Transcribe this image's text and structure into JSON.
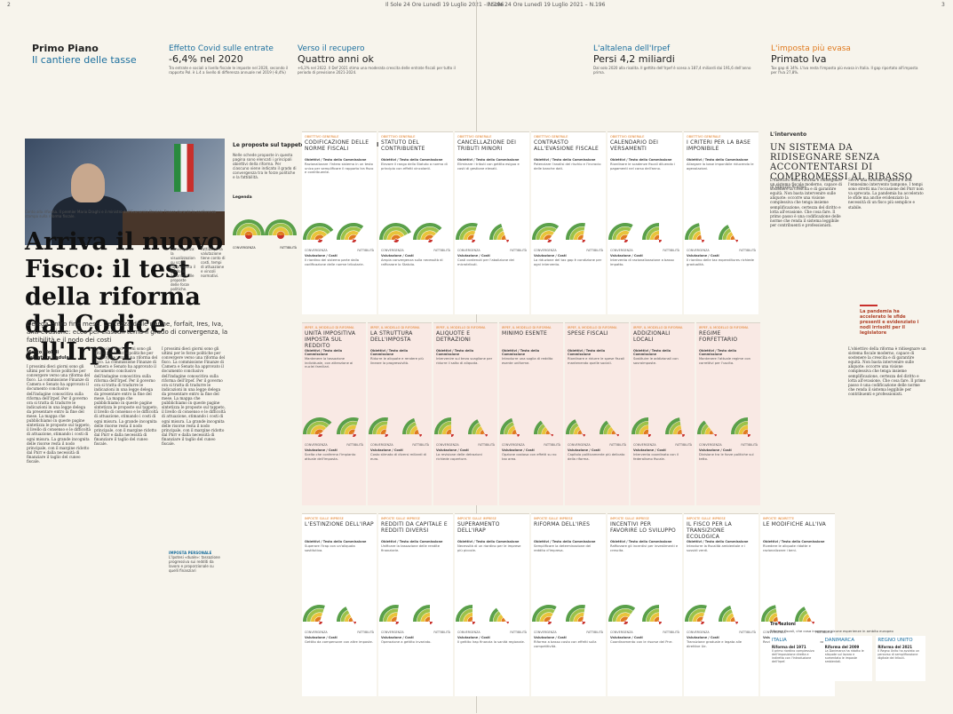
{
  "pages": {
    "left": "2",
    "right": "3"
  },
  "header": {
    "left": "Il Sole 24 Ore Lunedì 19 Luglio 2021 – N.196",
    "right": "Il Sole 24 Ore Lunedì 19 Luglio 2021 – N.196"
  },
  "section": {
    "main": "Primo Piano",
    "sub": "Il cantiere delle tasse"
  },
  "stats": [
    {
      "kicker": "Effetto Covid sulle entrate",
      "value": "-6,4% nel 2020",
      "text": "Tra entrate e sociali a livello fiscale le imposte nel 2020, secondo il rapporto Pol. è L.4 a livello di differenza annuale nel 2019 (-8,4%)"
    },
    {
      "kicker": "Verso il recupero",
      "value": "Quattro anni ok",
      "text": "+6,3% nel 2022. Il Def 2021 stima una moderata crescita delle entrate fiscali per tutto il periodo di previsione 2021-2024."
    },
    {
      "kicker": "L'altalena dell'Irpef",
      "value": "Persi 4,2 miliardi",
      "text": "Dal solo 2020 alla risalita. Il gettito dell'Irpef è sceso a 187,4 miliardi dai 191,6 dell'anno prima."
    },
    {
      "kicker": "L'imposta più evasa",
      "value": "Primato Iva",
      "text": "Tax gap di 34%. L'Iva resta l'imposta più evasa in Italia. Il gap riportato all'imposta per l'Iva 27,8%."
    }
  ],
  "photo_caption": "Cento alla riforma. Il premier Mario Draghi e il ministro dell'Economia Daniele Franco durante la conferenza stampa sulla riforma fiscale.",
  "headline": "Arriva il nuovo Fisco: il test della riforma dal Codice all'Irpef",
  "deck": "Delega entro fine mese. Certezza delle norme, forfait, Ires, Iva, anti-evasione: ecco per ciascun tema il grado di convergenza, la fattibilità e il nodo dei costi",
  "bylines": [
    "Marco Mobili",
    "Salvatore Padula"
  ],
  "body_text": "I prossimi dieci giorni sono gli ultimi per le forze politiche per convergere verso una riforma del fisco. La commissione Finanze di Camera e Senato ha approvato il documento conclusivo dell'indagine conoscitiva sulla riforma dell'Irpef. Per il governo ora si tratta di tradurre le indicazioni in una legge delega da presentare entro la fine del mese. La mappa che pubblichiamo in queste pagine sintetizza le proposte sul tappeto, il livello di consenso e le difficoltà di attuazione, stimando i costi di ogni misura. La grande incognita delle risorse resta il nodo principale, con il margine ridotto dal Pnrr e dalla necessità di finanziare il taglio del cuneo fiscale.",
  "box_left": "Convergenza: la visualizzazione su scala rappresenta il grado di accordo sulle proposte delle forze politiche.",
  "box_right": "Fattibilità: la valutazione tiene conto di costi, tempi di attuazione e vincoli normativi.",
  "sidebox": {
    "title": "IMPOSTA PERSONALE",
    "text": "L'Ipotesi «duale»: tassazione progressiva sui redditi da lavoro e proporzionale su quelli finanziari"
  },
  "panel": {
    "title": "Le proposte sul tappeto, il livello di consenso e le difficoltà di attuazione",
    "intro": "Nelle schede proposte in questa pagina sono elencati i principali obiettivi della riforma. Per ciascuno viene indicato il grado di convergenza tra le forze politiche e la fattibilità.",
    "legend_title": "Legenda",
    "legend_left": "CONVERGENZA",
    "legend_right": "FATTIBILITÀ"
  },
  "card_labels": {
    "sub": "Obiettivi / Testo della Commissione",
    "sub2": "Valutazione / Costi",
    "conv": "CONVERGENZA",
    "fatt": "FATTIBILITÀ"
  },
  "cards": [
    {
      "tag": "OBIETTIVO GENERALE",
      "title": "CODIFICAZIONE DELLE NORME FISCALI",
      "text": "Razionalizzare l'intero sistema in un testo unico per semplificare il rapporto tra fisco e contribuente.",
      "text2": "Il riordino del sistema parte dalla codificazione delle norme tributarie.",
      "conv": 0.8,
      "fatt": 0.7,
      "pink": false
    },
    {
      "tag": "OBIETTIVO GENERALE",
      "title": "STATUTO DEL CONTRIBUENTE",
      "text": "Elevare il rango dello Statuto a norma di principio con effetti vincolanti.",
      "text2": "Ampia convergenza sulla necessità di rafforzare lo Statuto.",
      "conv": 0.85,
      "fatt": 0.75,
      "pink": false
    },
    {
      "tag": "OBIETTIVO GENERALE",
      "title": "CANCELLAZIONE DEI TRIBUTI MINORI",
      "text": "Eliminare i tributi con gettito esiguo e costi di gestione elevati.",
      "text2": "Costi contenuti per l'abolizione dei microtributi.",
      "conv": 0.6,
      "fatt": 0.4,
      "pink": false
    },
    {
      "tag": "OBIETTIVO GENERALE",
      "title": "CONTRASTO ALL'EVASIONE FISCALE",
      "text": "Potenziare l'analisi del rischio e l'incrocio delle banche dati.",
      "text2": "La riduzione del tax gap è condizione per ogni intervento.",
      "conv": 0.7,
      "fatt": 0.55,
      "pink": false
    },
    {
      "tag": "OBIETTIVO GENERALE",
      "title": "CALENDARIO DEI VERSAMENTI",
      "text": "Riordinare le scadenze fiscali diluendo i pagamenti nel corso dell'anno.",
      "text2": "Intervento di razionalizzazione a basso impatto.",
      "conv": 0.65,
      "fatt": 0.5,
      "pink": false
    },
    {
      "tag": "OBIETTIVO GENERALE",
      "title": "I CRITERI PER LA BASE IMPONIBILE",
      "text": "Allargare la base imponibile riducendo le agevolazioni.",
      "text2": "Il riordino delle tax expenditures richiede gradualità.",
      "conv": 0.45,
      "fatt": 0.35,
      "pink": false
    },
    {
      "tag": "IRPEF, IL MODELLO DI RIFORMA",
      "title": "UNITÀ IMPOSITIVA IMPOSTA SUL REDDITO",
      "text": "Mantenere la tassazione individuale, con attenzione ai nuclei familiari.",
      "text2": "Scelta che conferma l'impianto attuale dell'imposta.",
      "conv": 0.75,
      "fatt": 0.6,
      "pink": true
    },
    {
      "tag": "IRPEF, IL MODELLO DI RIFORMA",
      "title": "LA STRUTTURA DELL'IMPOSTA",
      "text": "Ridurre le aliquote e rendere più lineare la progressività.",
      "text2": "Costo stimato di diversi miliardi di euro.",
      "conv": 0.55,
      "fatt": 0.4,
      "pink": true
    },
    {
      "tag": "IRPEF, IL MODELLO DI RIFORMA",
      "title": "ALIQUOTE E DETRAZIONI",
      "text": "Intervenire sul terzo scaglione per ridurre il salto di aliquota.",
      "text2": "La revisione delle detrazioni richiede coperture.",
      "conv": 0.5,
      "fatt": 0.35,
      "pink": true
    },
    {
      "tag": "IRPEF, IL MODELLO DI RIFORMA",
      "title": "MINIMO ESENTE",
      "text": "Introdurre una soglia di reddito esente uniforme.",
      "text2": "Opzione costosa con effetti su no tax area.",
      "conv": 0.4,
      "fatt": 0.3,
      "pink": true
    },
    {
      "tag": "IRPEF, IL MODELLO DI RIFORMA",
      "title": "SPESE FISCALI",
      "text": "Riordinare e ridurre le spese fiscali mantenendo quelle sociali.",
      "text2": "Capitolo politicamente più delicato della riforma.",
      "conv": 0.35,
      "fatt": 0.3,
      "pink": true
    },
    {
      "tag": "IRPEF, IL MODELLO DI RIFORMA",
      "title": "ADDIZIONALI LOCALI",
      "text": "Sostituire le addizionali con sovraimposte.",
      "text2": "Intervento coordinato con il federalismo fiscale.",
      "conv": 0.5,
      "fatt": 0.45,
      "pink": true
    },
    {
      "tag": "IRPEF, IL MODELLO DI RIFORMA",
      "title": "REGIME FORFETTARIO",
      "text": "Mantenere l'attuale regime con correttivi per l'uscita.",
      "text2": "Divisione tra le forze politiche sul tetto.",
      "conv": 0.3,
      "fatt": 0.5,
      "pink": true
    },
    {
      "tag": "IMPOSTE SULLE IMPRESE",
      "title": "L'ESTINZIONE DELL'IRAP",
      "text": "Superare l'Irap con un'aliquota sostitutiva.",
      "text2": "Gettito da compensare con altre imposte.",
      "conv": 0.6,
      "fatt": 0.35,
      "pink": false
    },
    {
      "tag": "IMPOSTE SULLE IMPRESE",
      "title": "REDDITI DA CAPITALE E REDDITI DIVERSI",
      "text": "Unificare la tassazione delle rendite finanziarie.",
      "text2": "Operazione a gettito invariato.",
      "conv": 0.55,
      "fatt": 0.5,
      "pink": false
    },
    {
      "tag": "IMPOSTE SULLE IMPRESE",
      "title": "SUPERAMENTO DELL'IRAP",
      "text": "Necessità di un riordino per le imprese più piccole.",
      "text2": "Il gettito Irap finanzia la sanità regionale.",
      "conv": 0.5,
      "fatt": 0.3,
      "pink": false
    },
    {
      "tag": "IMPOSTE SULLE IMPRESE",
      "title": "RIFORMA DELL'IRES",
      "text": "Semplificare la determinazione del reddito d'impresa.",
      "text2": "Riforma a basso costo con effetti sulla competitività.",
      "conv": 0.65,
      "fatt": 0.55,
      "pink": false
    },
    {
      "tag": "IMPOSTE SULLE IMPRESE",
      "title": "INCENTIVI PER FAVORIRE LO SVILUPPO",
      "text": "Rafforzare gli incentivi per investimenti e crescita.",
      "text2": "Coordinamento con le risorse del Pnrr.",
      "conv": 0.7,
      "fatt": 0.5,
      "pink": false
    },
    {
      "tag": "IMPOSTE SULLE IMPRESE",
      "title": "IL FISCO PER LA TRANSIZIONE ECOLOGICA",
      "text": "Introdurre la fiscalità ambientale e i sussidi verdi.",
      "text2": "Transizione graduale e legata alle direttive Ue.",
      "conv": 0.6,
      "fatt": 0.4,
      "pink": false
    },
    {
      "tag": "IMPOSTE INDIRETTE",
      "title": "LE MODIFICHE ALL'IVA",
      "text": "Rivedere le aliquote ridotte e razionalizzare i beni.",
      "text2": "Revisione legata al contrasto all'evasione.",
      "conv": 0.45,
      "fatt": 0.35,
      "pink": false
    }
  ],
  "right_column": {
    "kicker": "L'intervento",
    "title": "UN SISTEMA DA RIDISEGNARE SENZA ACCONTENTARSI DI COMPROMESSI AL RIBASSO",
    "author": "di Fabrizio Acerbis",
    "body": "L'obiettivo della riforma è ridisegnare un sistema fiscale moderno, capace di sostenere la crescita e di garantire equità. Non basta intervenire sulle aliquote: occorre una visione complessiva che tenga insieme semplificazione, certezza del diritto e lotta all'evasione. Che cosa fare. Il primo passo è una codificazione delle norme che renda il sistema leggibile per contribuenti e professionisti.",
    "body2": "Serve una riforma organica e non l'ennesimo intervento tampone. I tempi sono stretti ma l'occasione del Pnrr non va sprecata. La pandemia ha accelerato le sfide ma anche evidenziato la necessità di un fisco più semplice e stabile.",
    "pullquote": "La pandemia ha accelerato le sfide presenti e evidenziato i nodi irrisolti per il legislatore"
  },
  "tre_lezioni": {
    "title": "Tre lezioni",
    "intro": "Riforme fiscali, che cosa insegnano alcune esperienze in ambito europeo",
    "countries": [
      {
        "name": "ITALIA",
        "year": "Riforma del 1971",
        "text": "Il primo riordino complessivo dell'imposizione diretta e indiretta con l'introduzione dell'Irpef."
      },
      {
        "name": "DANIMARCA",
        "year": "Riforma del 2009",
        "text": "La Danimarca ha ridotto le aliquote sul lavoro e aumentato le imposte ambientali."
      },
      {
        "name": "REGNO UNITO",
        "year": "Riforma del 2021",
        "text": "Il Regno Unito ha avviato un percorso di semplificazione digitale dei tributi."
      }
    ]
  },
  "colors": {
    "accent": "#1c6f9e",
    "orange": "#e07a1f",
    "red": "#c9302c",
    "green": "#5aa04a",
    "yellow": "#e8c43a"
  }
}
